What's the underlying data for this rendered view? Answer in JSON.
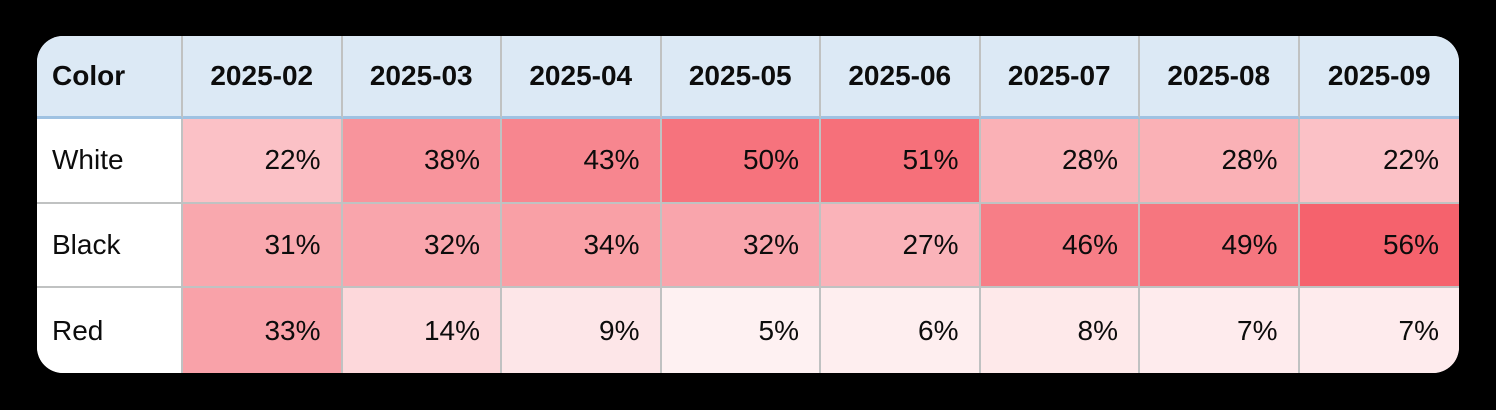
{
  "chart_data": {
    "type": "heatmap",
    "corner_label": "Color",
    "columns": [
      "2025-02",
      "2025-03",
      "2025-04",
      "2025-05",
      "2025-06",
      "2025-07",
      "2025-08",
      "2025-09"
    ],
    "rows": [
      {
        "label": "White",
        "values": [
          22,
          38,
          43,
          50,
          51,
          28,
          28,
          22
        ]
      },
      {
        "label": "Black",
        "values": [
          31,
          32,
          34,
          32,
          27,
          46,
          49,
          56
        ]
      },
      {
        "label": "Red",
        "values": [
          33,
          14,
          9,
          5,
          6,
          8,
          7,
          7
        ]
      }
    ],
    "value_suffix": "%",
    "color_scale": {
      "min_value": 0,
      "max_value": 56,
      "min_color": "#ffffff",
      "max_color": "#f5626d"
    },
    "legend": "none",
    "grid": true
  },
  "colors": {
    "page_background": "#000000",
    "card_background": "#ffffff",
    "header_background": "#dce9f5",
    "header_underline": "#9fc2e2",
    "grid_line": "#c0c2c2",
    "text": "#0c0c0c"
  }
}
